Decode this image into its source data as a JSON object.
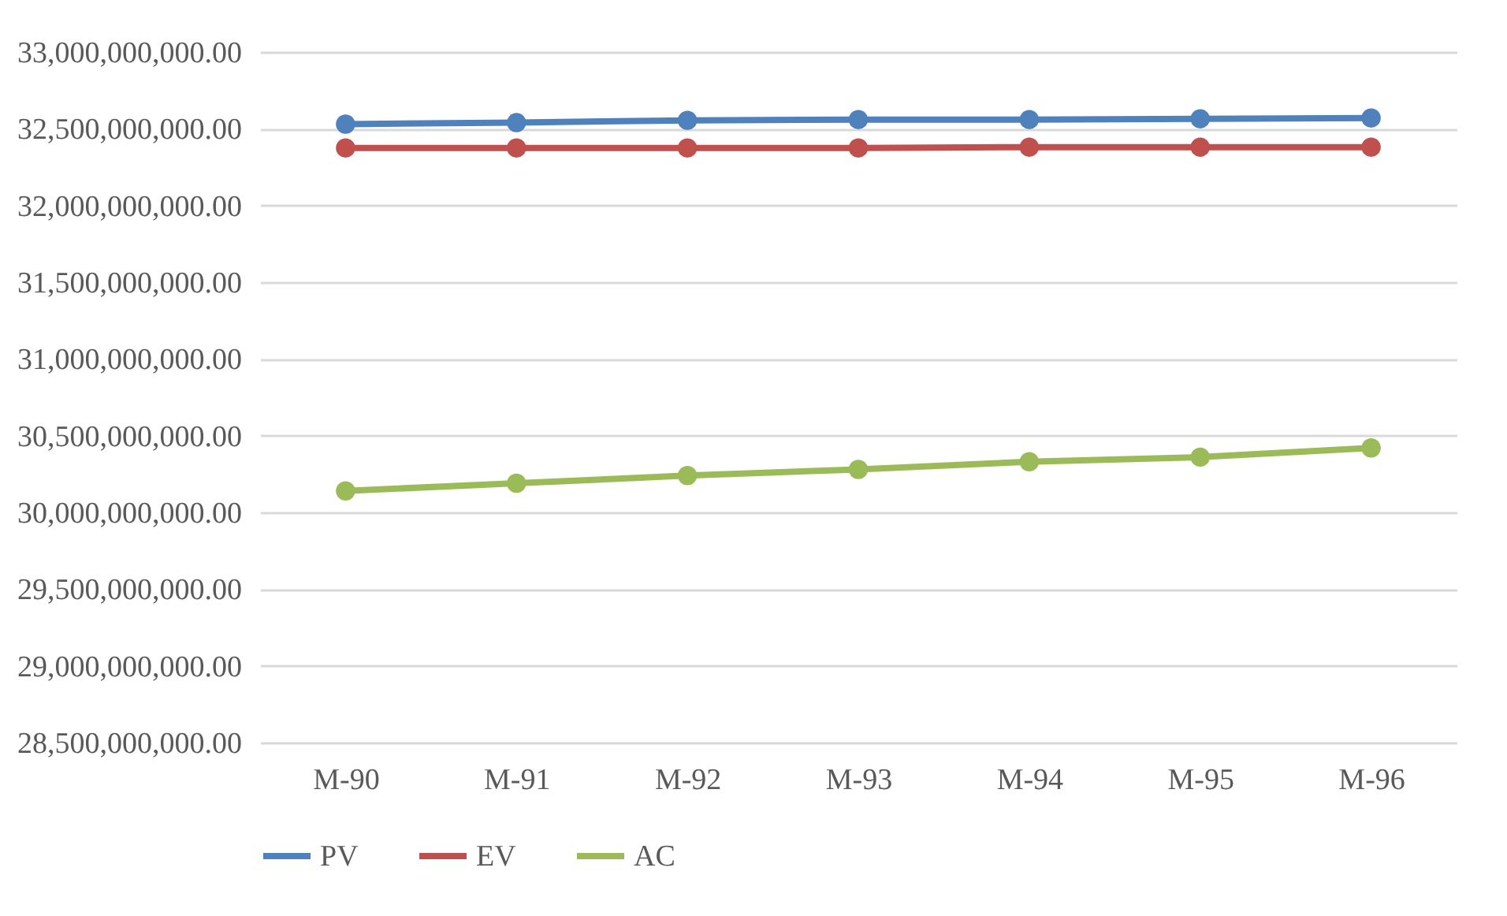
{
  "chart_data": {
    "type": "line",
    "categories": [
      "M-90",
      "M-91",
      "M-92",
      "M-93",
      "M-94",
      "M-95",
      "M-96"
    ],
    "series": [
      {
        "name": "PV",
        "color": "#4f81bd",
        "values": [
          32530000000,
          32540000000,
          32555000000,
          32560000000,
          32560000000,
          32565000000,
          32570000000
        ]
      },
      {
        "name": "EV",
        "color": "#c0504d",
        "values": [
          32375000000,
          32375000000,
          32375000000,
          32375000000,
          32380000000,
          32380000000,
          32380000000
        ]
      },
      {
        "name": "AC",
        "color": "#9bbb59",
        "values": [
          30140000000,
          30190000000,
          30240000000,
          30280000000,
          30330000000,
          30360000000,
          30420000000
        ]
      }
    ],
    "ylim": [
      28500000000,
      33000000000
    ],
    "yticks": [
      {
        "value": 28500000000,
        "label": "28,500,000,000.00"
      },
      {
        "value": 29000000000,
        "label": "29,000,000,000.00"
      },
      {
        "value": 29500000000,
        "label": "29,500,000,000.00"
      },
      {
        "value": 30000000000,
        "label": "30,000,000,000.00"
      },
      {
        "value": 30500000000,
        "label": "30,500,000,000.00"
      },
      {
        "value": 31000000000,
        "label": "31,000,000,000.00"
      },
      {
        "value": 31500000000,
        "label": "31,500,000,000.00"
      },
      {
        "value": 32000000000,
        "label": "32,000,000,000.00"
      },
      {
        "value": 32500000000,
        "label": "32,500,000,000.00"
      },
      {
        "value": 33000000000,
        "label": "33,000,000,000.00"
      }
    ],
    "grid": "y",
    "legend": "bottom",
    "marker": "circle",
    "line_style": "solid"
  }
}
